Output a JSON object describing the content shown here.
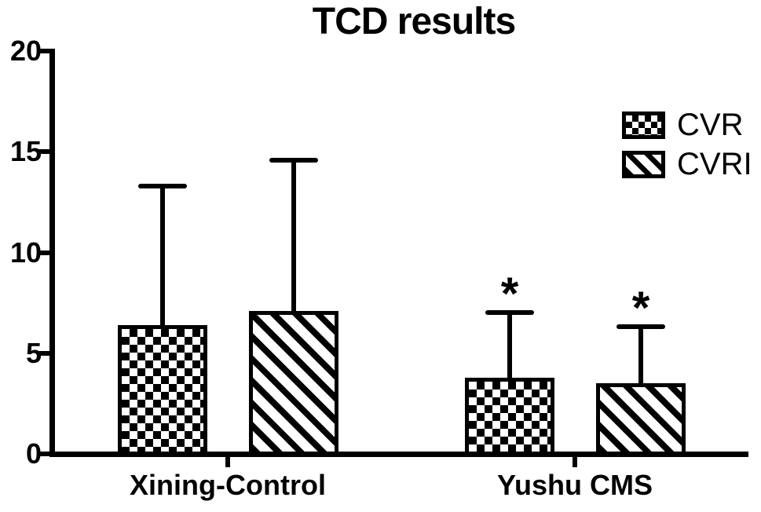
{
  "chart_data": {
    "type": "bar",
    "title": "TCD results",
    "categories": [
      "Xining-Control",
      "Yushu CMS"
    ],
    "series": [
      {
        "name": "CVR",
        "pattern": "checker",
        "values": [
          6.4,
          3.8
        ],
        "error_bar_tops": [
          13.3,
          7.0
        ],
        "significance": [
          "",
          "*"
        ]
      },
      {
        "name": "CVRI",
        "pattern": "diagonal",
        "values": [
          7.1,
          3.5
        ],
        "error_bar_tops": [
          14.6,
          6.3
        ],
        "significance": [
          "",
          "*"
        ]
      }
    ],
    "ylim": [
      0,
      20
    ],
    "yticks": [
      0,
      5,
      10,
      15,
      20
    ],
    "xlabel": "",
    "ylabel": "",
    "grid": false,
    "legend_position": "upper-right",
    "error_bars": "upper-only",
    "colors": {
      "foreground": "#000000",
      "background": "#ffffff"
    }
  }
}
